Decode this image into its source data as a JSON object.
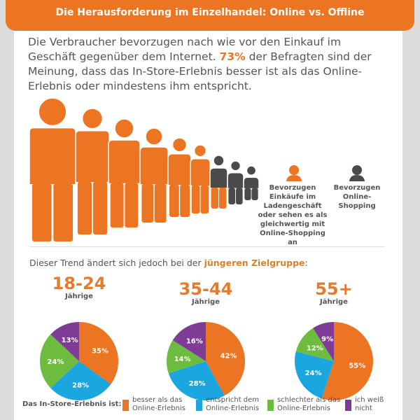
{
  "header": {
    "title": "Die Herausforderung im Einzelhandel: Online vs. Offline"
  },
  "intro": {
    "before": "Die Verbraucher bevorzugen nach wie vor den Einkauf im Geschäft gegenüber dem Internet. ",
    "highlight": "73%",
    "after": " der Befragten sind der Meinung, dass das In-Store-Erlebnis besser ist als das Online-Erlebnis oder mindestens ihm entspricht."
  },
  "people": {
    "share_in_store": 73,
    "legend": [
      {
        "label": "Bevorzugen Einkäufe im Ladengeschäft oder sehen es als gleichwertig mit Online-Shopping an",
        "color": "#ec7524"
      },
      {
        "label": "Bevorzugen Online-Shopping",
        "color": "#4a4a4a"
      }
    ]
  },
  "trend": {
    "before": "Dieser Trend ändert sich jedoch bei der ",
    "highlight": "jüngeren Zielgruppe",
    "after": ":"
  },
  "legend": {
    "title": "Das In-Store-Erlebnis ist:",
    "items": [
      {
        "label": "besser als das Online-Erlebnis",
        "color": "#ec7524"
      },
      {
        "label": "entspricht dem Online-Erlebnis",
        "color": "#1ba6df"
      },
      {
        "label": "schlechter als das Online-Erlebnis",
        "color": "#6dbb3f"
      },
      {
        "label": "ich weiß nicht",
        "color": "#7e3c97"
      }
    ]
  },
  "chart_data": [
    {
      "type": "pie",
      "title": "18-24",
      "subtitle": "Jährige",
      "categories": [
        "besser als das Online-Erlebnis",
        "entspricht dem Online-Erlebnis",
        "schlechter als das Online-Erlebnis",
        "ich weiß nicht"
      ],
      "values": [
        35,
        28,
        24,
        13
      ],
      "labels": [
        "35%",
        "28%",
        "24%",
        "13%"
      ],
      "colors": [
        "#ec7524",
        "#1ba6df",
        "#6dbb3f",
        "#7e3c97"
      ]
    },
    {
      "type": "pie",
      "title": "35-44",
      "subtitle": "Jährige",
      "categories": [
        "besser als das Online-Erlebnis",
        "entspricht dem Online-Erlebnis",
        "schlechter als das Online-Erlebnis",
        "ich weiß nicht"
      ],
      "values": [
        42,
        28,
        14,
        16
      ],
      "labels": [
        "42%",
        "28%",
        "14%",
        "16%"
      ],
      "colors": [
        "#ec7524",
        "#1ba6df",
        "#6dbb3f",
        "#7e3c97"
      ]
    },
    {
      "type": "pie",
      "title": "55+",
      "subtitle": "Jährige",
      "categories": [
        "besser als das Online-Erlebnis",
        "entspricht dem Online-Erlebnis",
        "schlechter als das Online-Erlebnis",
        "ich weiß nicht"
      ],
      "values": [
        55,
        24,
        12,
        9
      ],
      "labels": [
        "55%",
        "24%",
        "12%",
        "9%"
      ],
      "colors": [
        "#ec7524",
        "#1ba6df",
        "#6dbb3f",
        "#7e3c97"
      ]
    }
  ]
}
